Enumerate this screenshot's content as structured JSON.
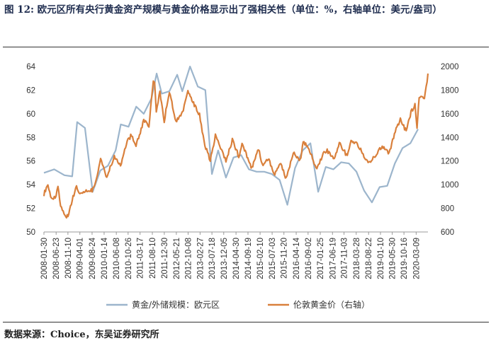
{
  "figure": {
    "title": "图 12: 欧元区所有央行黄金资产规模与黄金价格显示出了强相关性（单位：%，右轴单位：美元/盎司）",
    "source": "数据来源：Choice，东吴证券研究所"
  },
  "colors": {
    "gold_share": "#9cb5cc",
    "gold_price": "#d9803c"
  },
  "chart_data": {
    "type": "line",
    "xlabel": "",
    "ylabel": "",
    "x_ticks": [
      "2008-01-30",
      "2008-06-23",
      "2008-11-10",
      "2009-04-01",
      "2009-08-24",
      "2010-01-14",
      "2010-06-08",
      "2010-10-26",
      "2011-03-17",
      "2011-08-10",
      "2011-12-30",
      "2012-05-21",
      "2012-10-08",
      "2013-02-27",
      "2013-07-18",
      "2013-12-05",
      "2014-04-30",
      "2014-09-19",
      "2015-02-10",
      "2015-07-03",
      "2015-11-20",
      "2016-04-14",
      "2016-09-02",
      "2017-01-25",
      "2017-06-19",
      "2017-11-03",
      "2018-03-28",
      "2018-08-22",
      "2019-01-10",
      "2019-05-30",
      "2019-10-16",
      "2020-03-09"
    ],
    "x_range": [
      "2008-01-30",
      "2020-07-27"
    ],
    "y_left": {
      "min": 50,
      "max": 64,
      "ticks": [
        50,
        52,
        54,
        56,
        58,
        60,
        62,
        64
      ]
    },
    "y_right": {
      "min": 600,
      "max": 2000,
      "ticks": [
        600,
        800,
        1000,
        1200,
        1400,
        1600,
        1800,
        2000
      ]
    },
    "legend": {
      "position": "bottom"
    },
    "grid": false,
    "series": [
      {
        "name": "黄金/外储规模：欧元区",
        "axis": "left",
        "points": [
          [
            "2008-01-30",
            55.0
          ],
          [
            "2008-05-31",
            55.3
          ],
          [
            "2008-09-30",
            54.8
          ],
          [
            "2008-12-31",
            54.7
          ],
          [
            "2009-02-28",
            59.3
          ],
          [
            "2009-05-31",
            58.8
          ],
          [
            "2009-08-31",
            53.4
          ],
          [
            "2009-11-30",
            55.2
          ],
          [
            "2010-02-28",
            55.6
          ],
          [
            "2010-05-31",
            56.9
          ],
          [
            "2010-07-31",
            59.1
          ],
          [
            "2010-10-31",
            58.9
          ],
          [
            "2011-01-31",
            60.6
          ],
          [
            "2011-04-30",
            60.0
          ],
          [
            "2011-07-31",
            61.3
          ],
          [
            "2011-09-30",
            63.4
          ],
          [
            "2011-11-30",
            61.7
          ],
          [
            "2012-02-28",
            61.9
          ],
          [
            "2012-05-31",
            63.3
          ],
          [
            "2012-07-31",
            61.9
          ],
          [
            "2012-10-31",
            64.0
          ],
          [
            "2013-01-31",
            62.3
          ],
          [
            "2013-04-30",
            62.0
          ],
          [
            "2013-07-18",
            54.9
          ],
          [
            "2013-09-30",
            56.9
          ],
          [
            "2013-12-31",
            54.6
          ],
          [
            "2014-03-31",
            56.3
          ],
          [
            "2014-06-30",
            56.5
          ],
          [
            "2014-09-30",
            55.3
          ],
          [
            "2014-12-31",
            55.1
          ],
          [
            "2015-03-31",
            55.1
          ],
          [
            "2015-06-30",
            54.9
          ],
          [
            "2015-09-30",
            54.4
          ],
          [
            "2015-12-31",
            52.3
          ],
          [
            "2016-03-31",
            55.4
          ],
          [
            "2016-06-30",
            56.9
          ],
          [
            "2016-09-30",
            57.5
          ],
          [
            "2016-12-31",
            53.4
          ],
          [
            "2017-03-31",
            55.5
          ],
          [
            "2017-06-30",
            55.3
          ],
          [
            "2017-09-30",
            55.9
          ],
          [
            "2017-12-31",
            55.8
          ],
          [
            "2018-03-31",
            55.1
          ],
          [
            "2018-06-30",
            53.5
          ],
          [
            "2018-09-30",
            52.5
          ],
          [
            "2018-12-31",
            53.8
          ],
          [
            "2019-03-31",
            53.9
          ],
          [
            "2019-06-30",
            55.8
          ],
          [
            "2019-09-30",
            57.1
          ],
          [
            "2019-12-31",
            57.5
          ],
          [
            "2020-03-31",
            58.7
          ]
        ]
      },
      {
        "name": "伦敦黄金价（右轴）",
        "axis": "right",
        "points": [
          [
            "2008-01-30",
            920
          ],
          [
            "2008-03-17",
            1010
          ],
          [
            "2008-04-30",
            870
          ],
          [
            "2008-06-23",
            905
          ],
          [
            "2008-07-15",
            980
          ],
          [
            "2008-08-15",
            810
          ],
          [
            "2008-09-15",
            780
          ],
          [
            "2008-10-24",
            720
          ],
          [
            "2008-11-10",
            740
          ],
          [
            "2008-12-31",
            870
          ],
          [
            "2009-02-20",
            990
          ],
          [
            "2009-04-01",
            920
          ],
          [
            "2009-06-15",
            940
          ],
          [
            "2009-08-24",
            950
          ],
          [
            "2009-10-15",
            1050
          ],
          [
            "2009-12-03",
            1215
          ],
          [
            "2010-01-14",
            1140
          ],
          [
            "2010-02-05",
            1060
          ],
          [
            "2010-05-15",
            1240
          ],
          [
            "2010-07-28",
            1160
          ],
          [
            "2010-10-15",
            1370
          ],
          [
            "2010-12-07",
            1420
          ],
          [
            "2011-01-28",
            1330
          ],
          [
            "2011-04-30",
            1540
          ],
          [
            "2011-06-30",
            1500
          ],
          [
            "2011-08-22",
            1870
          ],
          [
            "2011-09-06",
            1880
          ],
          [
            "2011-09-26",
            1620
          ],
          [
            "2011-11-08",
            1790
          ],
          [
            "2011-12-29",
            1540
          ],
          [
            "2012-02-29",
            1790
          ],
          [
            "2012-05-16",
            1540
          ],
          [
            "2012-08-01",
            1610
          ],
          [
            "2012-10-05",
            1790
          ],
          [
            "2012-12-31",
            1660
          ],
          [
            "2013-02-20",
            1590
          ],
          [
            "2013-04-15",
            1360
          ],
          [
            "2013-06-28",
            1200
          ],
          [
            "2013-08-28",
            1420
          ],
          [
            "2013-12-31",
            1200
          ],
          [
            "2014-03-17",
            1380
          ],
          [
            "2014-06-02",
            1240
          ],
          [
            "2014-07-10",
            1340
          ],
          [
            "2014-11-05",
            1140
          ],
          [
            "2015-01-22",
            1300
          ],
          [
            "2015-03-17",
            1150
          ],
          [
            "2015-05-18",
            1230
          ],
          [
            "2015-07-24",
            1080
          ],
          [
            "2015-10-14",
            1180
          ],
          [
            "2015-12-17",
            1050
          ],
          [
            "2016-03-11",
            1280
          ],
          [
            "2016-05-30",
            1200
          ],
          [
            "2016-07-06",
            1370
          ],
          [
            "2016-09-02",
            1320
          ],
          [
            "2016-12-15",
            1130
          ],
          [
            "2017-02-27",
            1260
          ],
          [
            "2017-04-17",
            1290
          ],
          [
            "2017-07-10",
            1210
          ],
          [
            "2017-09-08",
            1350
          ],
          [
            "2017-12-12",
            1240
          ],
          [
            "2018-01-25",
            1360
          ],
          [
            "2018-04-11",
            1350
          ],
          [
            "2018-08-16",
            1175
          ],
          [
            "2018-10-26",
            1240
          ],
          [
            "2019-01-31",
            1320
          ],
          [
            "2019-04-23",
            1270
          ],
          [
            "2019-06-25",
            1430
          ],
          [
            "2019-09-04",
            1550
          ],
          [
            "2019-11-12",
            1450
          ],
          [
            "2020-01-08",
            1610
          ],
          [
            "2020-02-24",
            1680
          ],
          [
            "2020-03-19",
            1480
          ],
          [
            "2020-04-14",
            1740
          ],
          [
            "2020-06-15",
            1720
          ],
          [
            "2020-07-27",
            1940
          ]
        ]
      }
    ]
  }
}
